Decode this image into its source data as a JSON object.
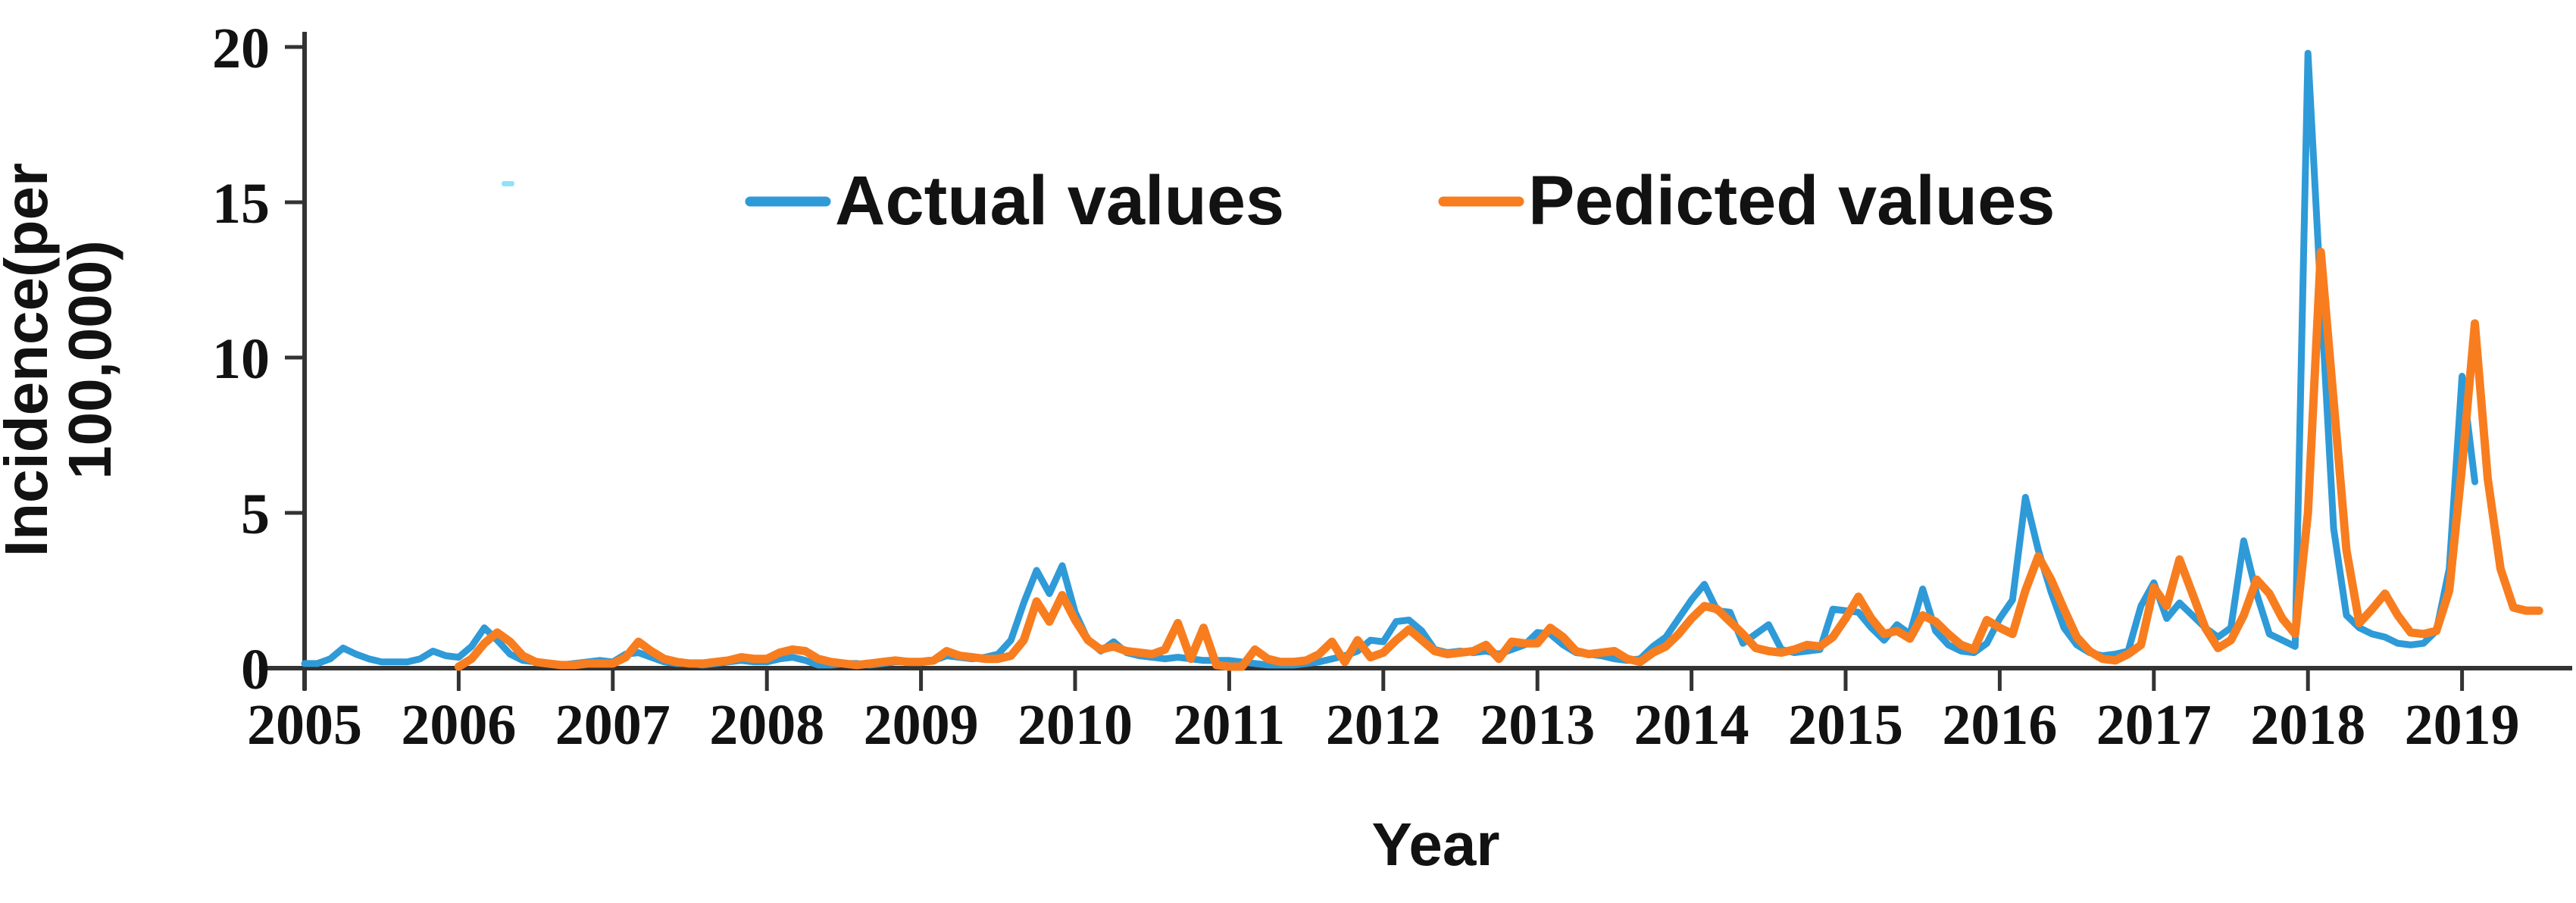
{
  "chart_data": {
    "type": "line",
    "title": "",
    "xlabel": "Year",
    "ylabel": "Incidence(per 100,000)",
    "ylabel_lines": [
      "Incidence(per",
      "100,000)"
    ],
    "x_tick_labels": [
      "2005",
      "2006",
      "2007",
      "2008",
      "2009",
      "2010",
      "2011",
      "2012",
      "2013",
      "2014",
      "2015",
      "2016",
      "2017",
      "2018",
      "2019"
    ],
    "y_ticks": [
      {
        "value": 0,
        "label": "0"
      },
      {
        "value": 5,
        "label": "5"
      },
      {
        "value": 10,
        "label": "10"
      },
      {
        "value": 15,
        "label": "15"
      },
      {
        "value": 20,
        "label": "20"
      }
    ],
    "ylim": [
      0,
      20
    ],
    "x_range_years": [
      2005,
      2019.6
    ],
    "x_unit": "month",
    "grid": false,
    "legend_position": "top-inside",
    "legend": [
      {
        "name": "Actual values",
        "color": "#2e9ad8"
      },
      {
        "name": "Pedicted values",
        "color": "#f87d1f"
      }
    ],
    "series": [
      {
        "name": "Actual values",
        "color": "#2e9ad8",
        "start_year": 2005,
        "start_month_index": 0,
        "values": [
          0.15,
          0.15,
          0.3,
          0.65,
          0.45,
          0.3,
          0.2,
          0.2,
          0.2,
          0.3,
          0.55,
          0.4,
          0.35,
          0.7,
          1.3,
          0.9,
          0.45,
          0.25,
          0.2,
          0.15,
          0.1,
          0.15,
          0.2,
          0.25,
          0.2,
          0.45,
          0.5,
          0.35,
          0.2,
          0.15,
          0.15,
          0.1,
          0.15,
          0.2,
          0.25,
          0.2,
          0.2,
          0.3,
          0.35,
          0.25,
          0.1,
          0.1,
          0.15,
          0.15,
          0.1,
          0.15,
          0.2,
          0.2,
          0.2,
          0.25,
          0.4,
          0.35,
          0.3,
          0.35,
          0.45,
          0.9,
          2.1,
          3.15,
          2.4,
          3.3,
          1.8,
          0.9,
          0.55,
          0.85,
          0.5,
          0.4,
          0.35,
          0.3,
          0.35,
          0.3,
          0.25,
          0.25,
          0.25,
          0.2,
          0.15,
          0.1,
          0.1,
          0.1,
          0.15,
          0.2,
          0.3,
          0.4,
          0.55,
          0.9,
          0.85,
          1.5,
          1.55,
          1.2,
          0.6,
          0.5,
          0.55,
          0.5,
          0.55,
          0.45,
          0.6,
          0.75,
          1.15,
          1.1,
          0.75,
          0.5,
          0.45,
          0.4,
          0.3,
          0.25,
          0.3,
          0.7,
          1.0,
          1.6,
          2.2,
          2.7,
          1.85,
          1.8,
          0.8,
          1.1,
          1.4,
          0.6,
          0.5,
          0.55,
          0.6,
          1.9,
          1.85,
          1.8,
          1.3,
          0.9,
          1.4,
          1.1,
          2.55,
          1.2,
          0.75,
          0.55,
          0.5,
          0.8,
          1.6,
          2.2,
          5.5,
          3.8,
          2.45,
          1.3,
          0.75,
          0.5,
          0.4,
          0.45,
          0.55,
          2.0,
          2.75,
          1.6,
          2.1,
          1.7,
          1.3,
          1.0,
          1.3,
          4.1,
          2.4,
          1.1,
          0.9,
          0.7,
          19.8,
          12.0,
          4.5,
          1.7,
          1.3,
          1.1,
          1.0,
          0.8,
          0.75,
          0.8,
          1.2,
          3.2,
          9.4,
          6.0
        ]
      },
      {
        "name": "Pedicted values",
        "color": "#f87d1f",
        "start_year": 2006,
        "start_month_index": 12,
        "values": [
          0.05,
          0.3,
          0.8,
          1.15,
          0.85,
          0.4,
          0.2,
          0.15,
          0.1,
          0.1,
          0.15,
          0.15,
          0.15,
          0.35,
          0.85,
          0.55,
          0.3,
          0.2,
          0.15,
          0.15,
          0.2,
          0.25,
          0.35,
          0.3,
          0.3,
          0.5,
          0.6,
          0.55,
          0.3,
          0.2,
          0.15,
          0.1,
          0.15,
          0.2,
          0.25,
          0.2,
          0.2,
          0.25,
          0.55,
          0.4,
          0.35,
          0.3,
          0.3,
          0.4,
          0.9,
          2.15,
          1.5,
          2.35,
          1.55,
          0.9,
          0.6,
          0.7,
          0.55,
          0.5,
          0.45,
          0.6,
          1.45,
          0.3,
          1.3,
          0.1,
          0.05,
          0.05,
          0.6,
          0.3,
          0.2,
          0.2,
          0.25,
          0.45,
          0.85,
          0.2,
          0.9,
          0.35,
          0.5,
          0.9,
          1.25,
          0.9,
          0.55,
          0.45,
          0.5,
          0.55,
          0.75,
          0.3,
          0.85,
          0.8,
          0.8,
          1.3,
          1.0,
          0.55,
          0.45,
          0.5,
          0.55,
          0.3,
          0.2,
          0.5,
          0.7,
          1.1,
          1.6,
          2.0,
          1.9,
          1.5,
          1.1,
          0.65,
          0.55,
          0.5,
          0.6,
          0.75,
          0.7,
          1.0,
          1.6,
          2.3,
          1.6,
          1.1,
          1.2,
          0.95,
          1.7,
          1.5,
          1.1,
          0.75,
          0.6,
          1.55,
          1.3,
          1.1,
          2.5,
          3.6,
          2.85,
          1.9,
          1.0,
          0.55,
          0.3,
          0.25,
          0.45,
          0.75,
          2.6,
          2.0,
          3.5,
          2.4,
          1.3,
          0.65,
          0.9,
          1.7,
          2.85,
          2.4,
          1.6,
          1.1,
          5.0,
          13.4,
          8.6,
          3.8,
          1.45,
          1.9,
          2.4,
          1.7,
          1.15,
          1.1,
          1.2,
          2.5,
          6.5,
          11.1,
          6.1,
          3.2,
          1.95,
          1.85,
          1.85
        ]
      }
    ]
  }
}
